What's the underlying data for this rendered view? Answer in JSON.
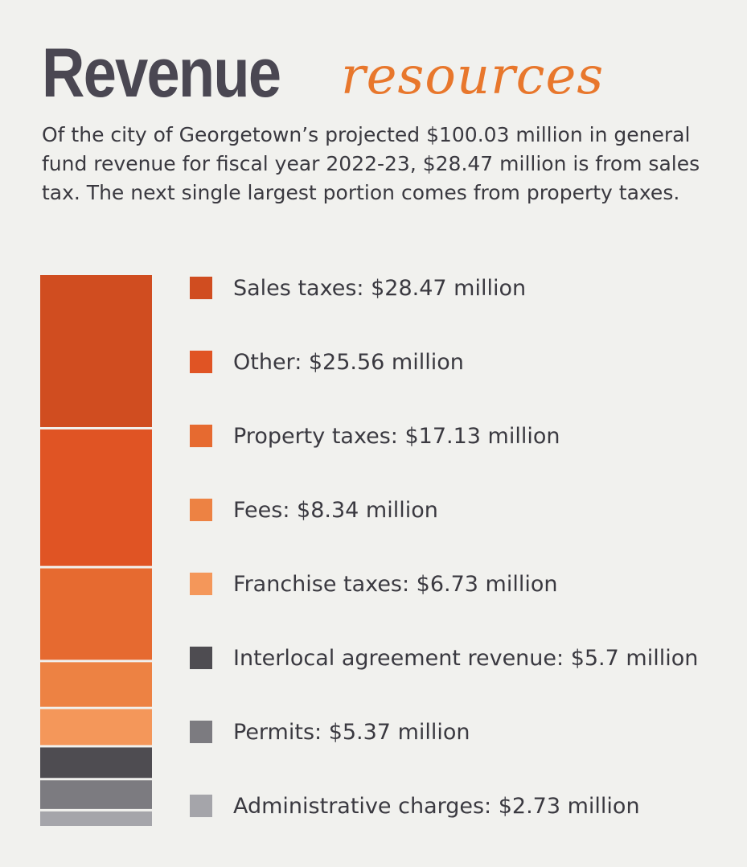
{
  "title": {
    "main": "Revenue",
    "script": "resources"
  },
  "intro": "Of the city of Georgetown’s projected $100.03 million in general fund revenue for fiscal year 2022-23, $28.47 million is from sales tax. The next single largest portion comes from property taxes.",
  "chart_data": {
    "type": "bar",
    "stacked": true,
    "orientation": "vertical",
    "unit": "million",
    "categories": [
      "Sales taxes",
      "Other",
      "Property taxes",
      "Fees",
      "Franchise taxes",
      "Interlocal agreement revenue",
      "Permits",
      "Administrative charges"
    ],
    "values": [
      28.47,
      25.56,
      17.13,
      8.34,
      6.73,
      5.7,
      5.37,
      2.73
    ],
    "legend_labels": [
      "Sales taxes: $28.47 million",
      "Other: $25.56 million",
      "Property taxes: $17.13 million",
      "Fees: $8.34 million",
      "Franchise taxes: $6.73 million",
      "Interlocal agreement revenue: $5.7 million",
      "Permits: $5.37 million",
      "Administrative charges: $2.73 million"
    ],
    "colors": [
      "#d04d20",
      "#e05424",
      "#e66a30",
      "#ed8243",
      "#f4975a",
      "#4e4c51",
      "#7c7b80",
      "#a5a5aa"
    ],
    "legend_placement": "right"
  }
}
